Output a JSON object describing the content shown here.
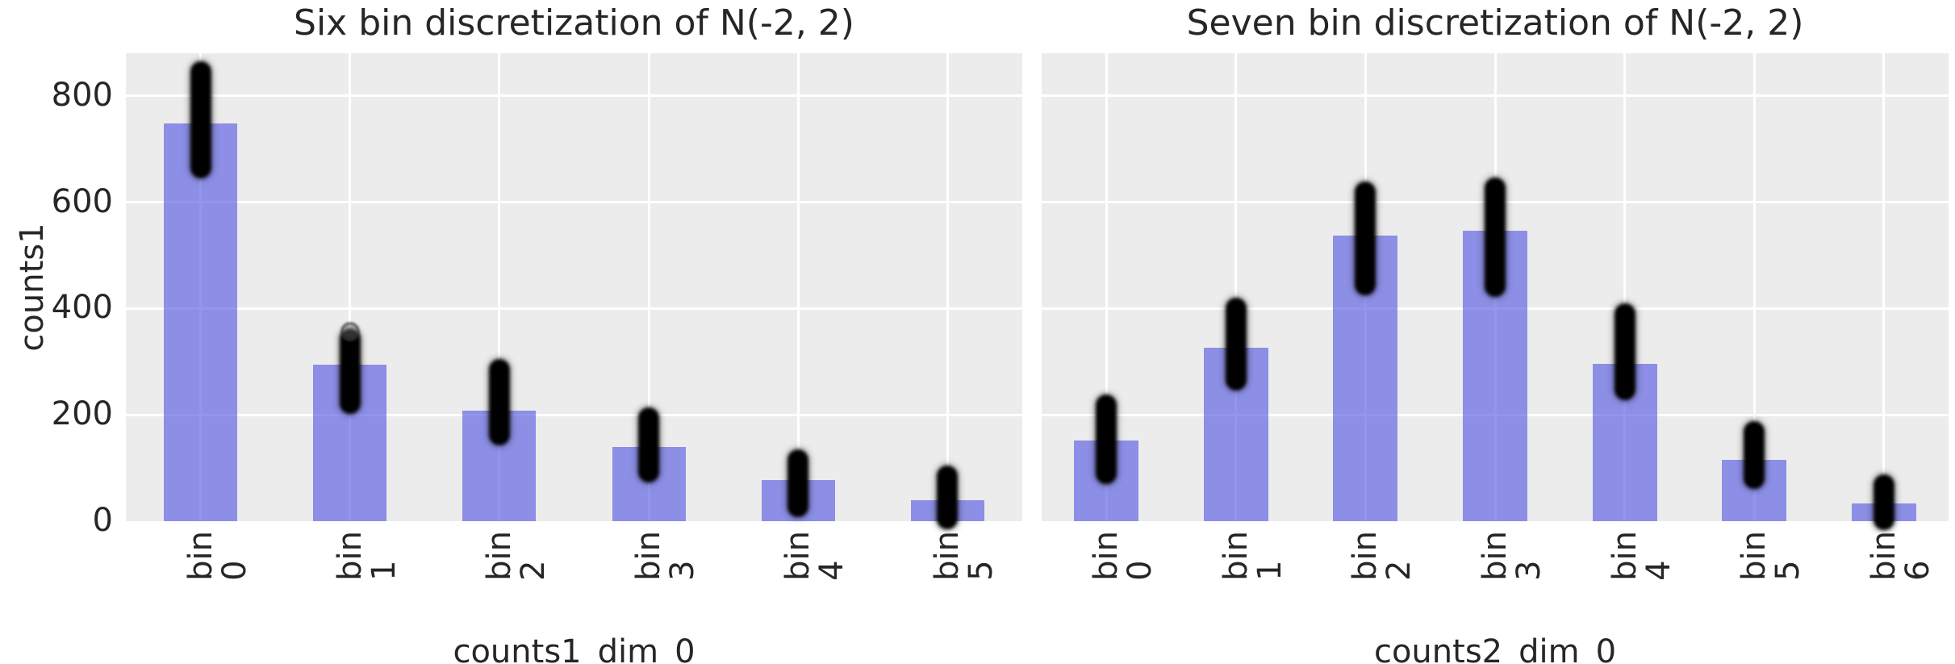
{
  "style": {
    "figure_background": "#ffffff",
    "plot_background": "#ececec",
    "grid_color": "#ffffff",
    "bar_fill": "rgba(80,86,224,0.62)",
    "bar_fill_composite": "#8b8fe5",
    "scatter_color": "#000000",
    "text_color": "#262626"
  },
  "chart_data": [
    {
      "type": "bar",
      "title": "Six bin discretization of N(-2, 2)",
      "xlabel": "counts1_dim_0",
      "ylabel": "counts1",
      "categories": [
        "bin 0",
        "bin 1",
        "bin 2",
        "bin 3",
        "bin 4",
        "bin 5"
      ],
      "series": [
        {
          "name": "observed-counts-bars",
          "values": [
            748,
            295,
            208,
            139,
            77,
            40
          ]
        },
        {
          "name": "posterior-predictive-scatter-ranges",
          "ranges": [
            [
              665,
              845
            ],
            [
              222,
              343
            ],
            [
              163,
              285
            ],
            [
              92,
              195
            ],
            [
              28,
              115
            ],
            [
              5,
              85
            ]
          ]
        }
      ],
      "outliers": [
        {
          "category_index": 1,
          "value": 357
        }
      ],
      "ylim": [
        0,
        880
      ],
      "yticks": [
        0,
        200,
        400,
        600,
        800
      ],
      "ytick_labels_visible": true,
      "grid": true,
      "legend": false
    },
    {
      "type": "bar",
      "title": "Seven bin discretization of N(-2, 2)",
      "xlabel": "counts2_dim_0",
      "ylabel": "",
      "categories": [
        "bin 0",
        "bin 1",
        "bin 2",
        "bin 3",
        "bin 4",
        "bin 5",
        "bin 6"
      ],
      "series": [
        {
          "name": "observed-counts-bars",
          "values": [
            152,
            327,
            537,
            546,
            296,
            115,
            33
          ]
        },
        {
          "name": "posterior-predictive-scatter-ranges",
          "ranges": [
            [
              90,
              218
            ],
            [
              265,
              400
            ],
            [
              445,
              620
            ],
            [
              442,
              627
            ],
            [
              247,
              390
            ],
            [
              80,
              168
            ],
            [
              3,
              68
            ]
          ]
        }
      ],
      "outliers": [],
      "ylim": [
        0,
        880
      ],
      "yticks": [
        0,
        200,
        400,
        600,
        800
      ],
      "ytick_labels_visible": false,
      "grid": true,
      "legend": false
    }
  ]
}
